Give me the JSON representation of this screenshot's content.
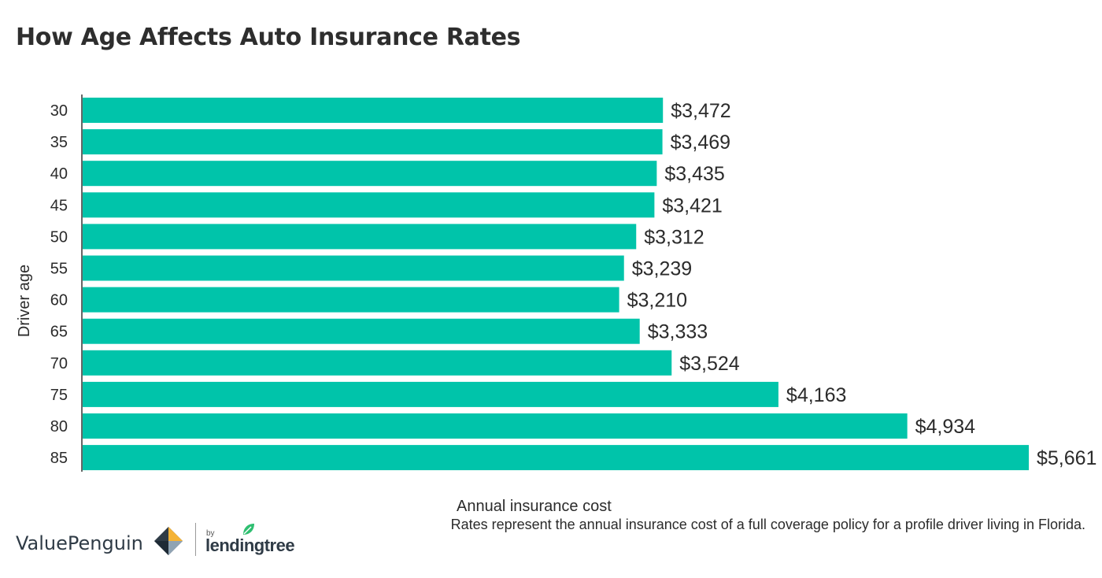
{
  "title": "How Age Affects Auto Insurance Rates",
  "chart_data": {
    "type": "bar",
    "orientation": "horizontal",
    "title": "How Age Affects Auto Insurance Rates",
    "ylabel": "Driver age",
    "xlabel": "Annual insurance cost",
    "categories": [
      "30",
      "35",
      "40",
      "45",
      "50",
      "55",
      "60",
      "65",
      "70",
      "75",
      "80",
      "85"
    ],
    "values": [
      3472,
      3469,
      3435,
      3421,
      3312,
      3239,
      3210,
      3333,
      3524,
      4163,
      4934,
      5661
    ],
    "value_labels": [
      "$3,472",
      "$3,469",
      "$3,435",
      "$3,421",
      "$3,312",
      "$3,239",
      "$3,210",
      "$3,333",
      "$3,524",
      "$4,163",
      "$4,934",
      "$5,661"
    ],
    "xlim": [
      0,
      5661
    ],
    "grid": false,
    "bar_color": "#00c4aa"
  },
  "footnote": "Rates represent the annual insurance cost of a full coverage policy for a profile driver living in Florida.",
  "logos": {
    "valuepenguin": "ValuePenguin",
    "by": "by",
    "lendingtree": "lendingtree"
  },
  "icons": [
    "valuepenguin-icon",
    "lendingtree-leaf-icon"
  ]
}
